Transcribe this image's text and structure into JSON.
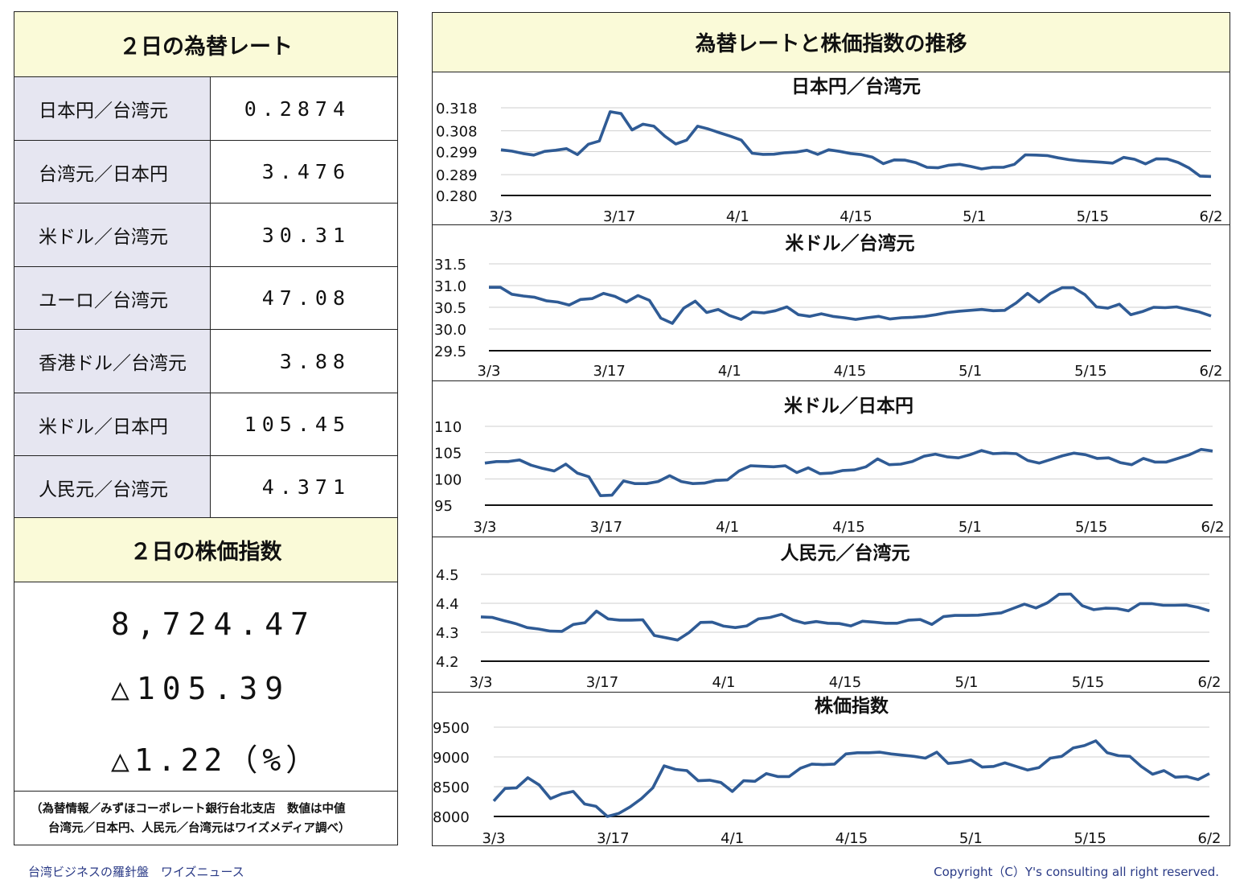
{
  "rates_panel": {
    "title": "２日の為替レート",
    "rows": [
      {
        "label": "日本円／台湾元",
        "value": "0.2874"
      },
      {
        "label": "台湾元／日本円",
        "value": "3.476"
      },
      {
        "label": "米ドル／台湾元",
        "value": "30.31"
      },
      {
        "label": "ユーロ／台湾元",
        "value": "47.08"
      },
      {
        "label": "香港ドル／台湾元",
        "value": "3.88"
      },
      {
        "label": "米ドル／日本円",
        "value": "105.45"
      },
      {
        "label": "人民元／台湾元",
        "value": "4.371"
      }
    ]
  },
  "stock_panel": {
    "title": "２日の株価指数",
    "value": "8,724.47",
    "change": "△105.39",
    "change_pct": "△1.22（%）"
  },
  "note": {
    "line1": "（為替情報／みずほコーポレート銀行台北支店　数値は中値",
    "line2": "台湾元／日本円、人民元／台湾元はワイズメディア調べ）"
  },
  "charts_panel": {
    "title": "為替レートと株価指数の推移"
  },
  "footer": {
    "left": "台湾ビジネスの羅針盤　ワイズニュース",
    "right": "Copyright（C）Y's consulting all right reserved."
  },
  "style": {
    "line_color": "#2f5b95",
    "header_bg": "#fafad8",
    "label_bg": "#e6e6f1",
    "footer_color": "#2a3a86"
  },
  "chart_data": [
    {
      "type": "line",
      "title": "日本円／台湾元",
      "x_ticks": [
        "3/3",
        "3/17",
        "4/1",
        "4/15",
        "5/1",
        "5/15",
        "6/2"
      ],
      "y_ticks": [
        "0.280",
        "0.289",
        "0.299",
        "0.308",
        "0.318"
      ],
      "ylim": [
        0.28,
        0.318
      ],
      "values": [
        0.2998,
        0.2992,
        0.2982,
        0.2975,
        0.2991,
        0.2996,
        0.3003,
        0.2977,
        0.3022,
        0.3036,
        0.3163,
        0.3155,
        0.3084,
        0.3109,
        0.31,
        0.3057,
        0.3023,
        0.304,
        0.31,
        0.3088,
        0.3072,
        0.3057,
        0.304,
        0.2983,
        0.2978,
        0.2979,
        0.2985,
        0.2988,
        0.2996,
        0.2978,
        0.2998,
        0.2991,
        0.2982,
        0.2977,
        0.2966,
        0.2938,
        0.2954,
        0.2953,
        0.2942,
        0.2922,
        0.292,
        0.2931,
        0.2935,
        0.2926,
        0.2915,
        0.2922,
        0.2922,
        0.2935,
        0.2976,
        0.2975,
        0.2973,
        0.2963,
        0.2955,
        0.295,
        0.2947,
        0.2944,
        0.294,
        0.2965,
        0.2957,
        0.2937,
        0.2959,
        0.2958,
        0.2943,
        0.2919,
        0.2884,
        0.2882
      ]
    },
    {
      "type": "line",
      "title": "米ドル／台湾元",
      "x_ticks": [
        "3/3",
        "3/17",
        "4/1",
        "4/15",
        "5/1",
        "5/15",
        "6/2"
      ],
      "y_ticks": [
        "29.5",
        "30.0",
        "30.5",
        "31.0",
        "31.5"
      ],
      "ylim": [
        29.5,
        31.5
      ],
      "values": [
        30.96,
        30.96,
        30.8,
        30.76,
        30.73,
        30.65,
        30.62,
        30.55,
        30.68,
        30.7,
        30.82,
        30.75,
        30.62,
        30.77,
        30.66,
        30.25,
        30.13,
        30.48,
        30.64,
        30.38,
        30.45,
        30.31,
        30.22,
        30.39,
        30.37,
        30.42,
        30.51,
        30.33,
        30.29,
        30.35,
        30.29,
        30.26,
        30.22,
        30.26,
        30.29,
        30.23,
        30.26,
        30.27,
        30.29,
        30.33,
        30.38,
        30.41,
        30.43,
        30.45,
        30.42,
        30.43,
        30.6,
        30.82,
        30.62,
        30.82,
        30.95,
        30.95,
        30.79,
        30.51,
        30.48,
        30.57,
        30.33,
        30.4,
        30.5,
        30.49,
        30.51,
        30.45,
        30.39,
        30.3
      ]
    },
    {
      "type": "line",
      "title": "米ドル／日本円",
      "x_ticks": [
        "3/3",
        "3/17",
        "4/1",
        "4/15",
        "5/1",
        "5/15",
        "6/2"
      ],
      "y_ticks": [
        "95",
        "100",
        "105",
        "110"
      ],
      "ylim": [
        95,
        110
      ],
      "values": [
        103.0,
        103.3,
        103.3,
        103.6,
        102.6,
        102.0,
        101.5,
        102.8,
        101.1,
        100.4,
        96.8,
        96.9,
        99.6,
        99.1,
        99.1,
        99.5,
        100.6,
        99.5,
        99.1,
        99.2,
        99.7,
        99.8,
        101.5,
        102.5,
        102.4,
        102.3,
        102.5,
        101.2,
        102.1,
        101.0,
        101.1,
        101.6,
        101.7,
        102.3,
        103.8,
        102.7,
        102.8,
        103.3,
        104.3,
        104.7,
        104.2,
        104.0,
        104.6,
        105.4,
        104.8,
        104.9,
        104.8,
        103.5,
        103.0,
        103.7,
        104.4,
        104.9,
        104.6,
        103.9,
        104.0,
        103.1,
        102.7,
        103.9,
        103.2,
        103.2,
        103.9,
        104.6,
        105.6,
        105.3
      ]
    },
    {
      "type": "line",
      "title": "人民元／台湾元",
      "x_ticks": [
        "3/3",
        "3/17",
        "4/1",
        "4/15",
        "5/1",
        "5/15",
        "6/2"
      ],
      "y_ticks": [
        "4.2",
        "4.3",
        "4.4",
        "4.5"
      ],
      "ylim": [
        4.2,
        4.5
      ],
      "values": [
        4.353,
        4.351,
        4.34,
        4.33,
        4.316,
        4.311,
        4.304,
        4.303,
        4.327,
        4.333,
        4.373,
        4.346,
        4.342,
        4.342,
        4.343,
        4.289,
        4.281,
        4.273,
        4.299,
        4.334,
        4.335,
        4.321,
        4.316,
        4.322,
        4.346,
        4.351,
        4.362,
        4.342,
        4.331,
        4.337,
        4.331,
        4.33,
        4.322,
        4.338,
        4.335,
        4.331,
        4.331,
        4.342,
        4.344,
        4.327,
        4.354,
        4.358,
        4.358,
        4.359,
        4.363,
        4.367,
        4.382,
        4.397,
        4.384,
        4.402,
        4.431,
        4.432,
        4.392,
        4.378,
        4.383,
        4.382,
        4.374,
        4.399,
        4.399,
        4.393,
        4.393,
        4.394,
        4.386,
        4.374
      ]
    },
    {
      "type": "line",
      "title": "株価指数",
      "x_ticks": [
        "3/3",
        "3/17",
        "4/1",
        "4/15",
        "5/1",
        "5/15",
        "6/2"
      ],
      "y_ticks": [
        "8000",
        "8500",
        "9000",
        "9500"
      ],
      "ylim": [
        8000,
        9500
      ],
      "values": [
        8260,
        8470,
        8480,
        8650,
        8530,
        8300,
        8380,
        8420,
        8210,
        8170,
        8000,
        8050,
        8160,
        8300,
        8480,
        8850,
        8790,
        8770,
        8600,
        8610,
        8570,
        8420,
        8600,
        8590,
        8720,
        8670,
        8670,
        8810,
        8880,
        8870,
        8880,
        9050,
        9070,
        9070,
        9080,
        9050,
        9030,
        9010,
        8980,
        9080,
        8890,
        8910,
        8950,
        8830,
        8840,
        8900,
        8840,
        8780,
        8820,
        8980,
        9010,
        9150,
        9190,
        9270,
        9070,
        9020,
        9010,
        8840,
        8710,
        8770,
        8660,
        8670,
        8620,
        8720
      ]
    }
  ]
}
